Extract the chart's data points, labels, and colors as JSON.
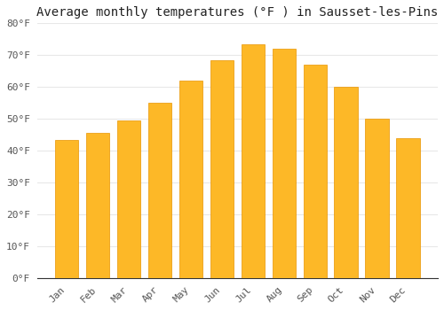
{
  "title": "Average monthly temperatures (°F ) in Sausset-les-Pins",
  "months": [
    "Jan",
    "Feb",
    "Mar",
    "Apr",
    "May",
    "Jun",
    "Jul",
    "Aug",
    "Sep",
    "Oct",
    "Nov",
    "Dec"
  ],
  "values": [
    43.5,
    45.5,
    49.5,
    55.0,
    62.0,
    68.5,
    73.5,
    72.0,
    67.0,
    60.0,
    50.0,
    44.0
  ],
  "bar_color_face": "#FDB827",
  "bar_color_edge": "#E89400",
  "background_color": "#FFFFFF",
  "grid_color": "#E8E8E8",
  "ylim": [
    0,
    80
  ],
  "yticks": [
    0,
    10,
    20,
    30,
    40,
    50,
    60,
    70,
    80
  ],
  "ylabel_suffix": "°F",
  "title_fontsize": 10,
  "tick_fontsize": 8
}
